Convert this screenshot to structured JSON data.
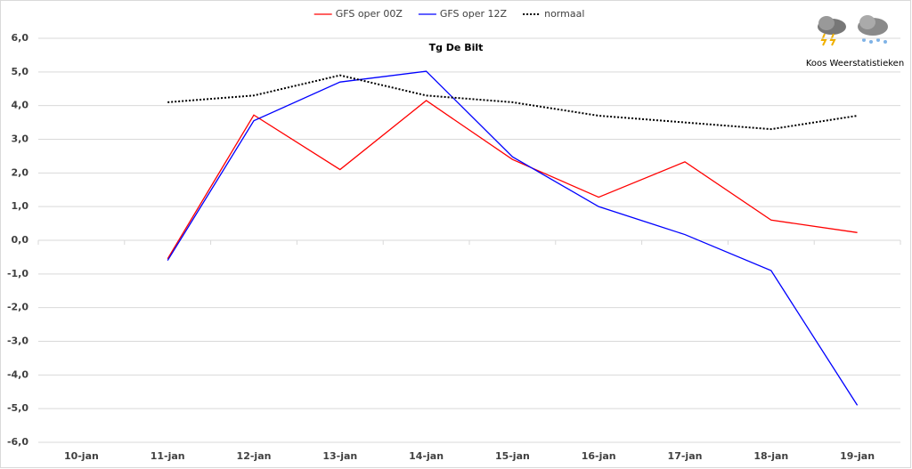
{
  "chart_data": {
    "type": "line",
    "title": "Tg De Bilt",
    "watermark": "Koos Weerstatistieken",
    "categories": [
      "10-jan",
      "11-jan",
      "12-jan",
      "13-jan",
      "14-jan",
      "15-jan",
      "16-jan",
      "17-jan",
      "18-jan",
      "19-jan"
    ],
    "series": [
      {
        "name": "GFS oper 00Z",
        "color": "#ff0000",
        "dash": "solid",
        "values": [
          null,
          -0.55,
          3.72,
          2.1,
          4.15,
          2.4,
          1.28,
          2.33,
          0.6,
          0.23
        ]
      },
      {
        "name": "GFS oper 12Z",
        "color": "#0000ff",
        "dash": "solid",
        "values": [
          null,
          -0.6,
          3.55,
          4.7,
          5.02,
          2.48,
          1.0,
          0.17,
          -0.9,
          -4.9
        ]
      },
      {
        "name": "normaal",
        "color": "#000000",
        "dash": "dotted",
        "values": [
          null,
          4.1,
          4.3,
          4.9,
          4.3,
          4.1,
          3.7,
          3.5,
          3.3,
          3.7
        ]
      }
    ],
    "ylim": [
      -6,
      6
    ],
    "yticks": [
      {
        "value": -6,
        "label": "-6,0"
      },
      {
        "value": -5,
        "label": "-5,0"
      },
      {
        "value": -4,
        "label": "-4,0"
      },
      {
        "value": -3,
        "label": "-3,0"
      },
      {
        "value": -2,
        "label": "-2,0"
      },
      {
        "value": -1,
        "label": "-1,0"
      },
      {
        "value": 0,
        "label": "0,0"
      },
      {
        "value": 1,
        "label": "1,0"
      },
      {
        "value": 2,
        "label": "2,0"
      },
      {
        "value": 3,
        "label": "3,0"
      },
      {
        "value": 4,
        "label": "4,0"
      },
      {
        "value": 5,
        "label": "5,0"
      },
      {
        "value": 6,
        "label": "6,0"
      }
    ],
    "grid": true,
    "legend": "top"
  }
}
